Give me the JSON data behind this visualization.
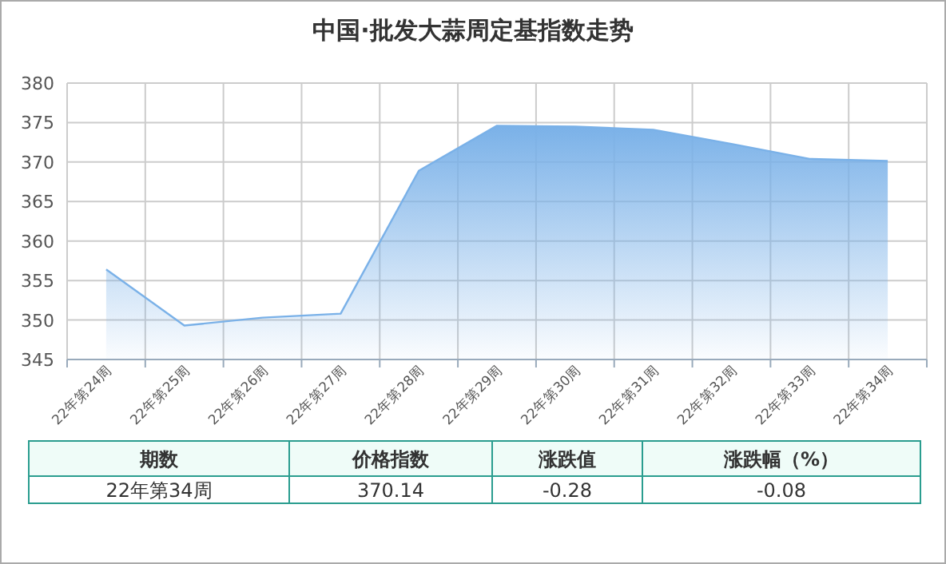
{
  "chart_data": {
    "type": "area",
    "title": "中国·批发大蒜周定基指数走势",
    "categories": [
      "22年第24周",
      "22年第25周",
      "22年第26周",
      "22年第27周",
      "22年第28周",
      "22年第29周",
      "22年第30周",
      "22年第31周",
      "22年第32周",
      "22年第33周",
      "22年第34周"
    ],
    "series": [
      {
        "color": "#7ab1e8",
        "values": [
          356.4,
          349.3,
          350.3,
          350.8,
          368.9,
          374.6,
          374.5,
          374.1,
          372.3,
          370.4,
          370.14
        ]
      }
    ],
    "ylim": [
      345,
      380
    ],
    "yticks": [
      345,
      350,
      355,
      360,
      365,
      370,
      375,
      380
    ],
    "grid": true,
    "annotations": [
      "期数",
      "价格指数",
      "涨跌值",
      "涨跌幅（%）",
      "22年第34周",
      "370.14",
      "-0.28",
      "-0.08"
    ]
  }
}
